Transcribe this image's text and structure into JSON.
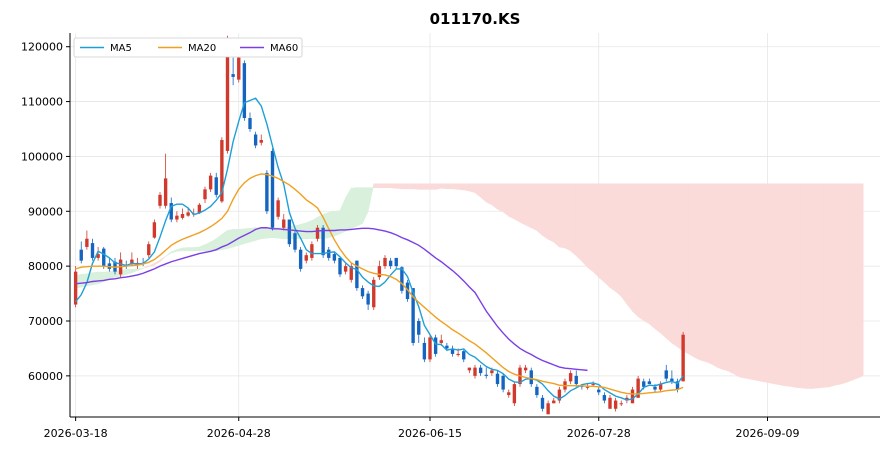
{
  "chart_data": {
    "type": "candlestick",
    "title": "011170.KS",
    "xlabel": "",
    "ylabel": "",
    "ylim": [
      52500,
      122500
    ],
    "y_ticks": [
      60000,
      70000,
      80000,
      90000,
      100000,
      110000,
      120000
    ],
    "y_tick_labels": [
      "60000",
      "70000",
      "80000",
      "90000",
      "100000",
      "110000",
      "120000"
    ],
    "x_ticks": [
      "2026-03-18",
      "2026-04-28",
      "2026-06-15",
      "2026-07-28",
      "2026-09-09"
    ],
    "x_tick_index": [
      0,
      29,
      63,
      93,
      123
    ],
    "x_range": [
      -1,
      143
    ],
    "grid": true,
    "legend_position": "top-left",
    "legend": [
      {
        "name": "MA5",
        "color": "#1f9fd8"
      },
      {
        "name": "MA20",
        "color": "#f0a020"
      },
      {
        "name": "MA60",
        "color": "#7b3fe4"
      }
    ],
    "colors": {
      "up": "#d0392b",
      "down": "#1565c0",
      "cloud_bull": "#d8f0dc",
      "cloud_bear": "#fbdada"
    },
    "candles_open": [
      73000,
      83000,
      83500,
      84200,
      81500,
      83200,
      80500,
      80800,
      78500,
      80300,
      80500,
      80200,
      80600,
      82000,
      85200,
      91000,
      91000,
      91500,
      88500,
      88800,
      89200,
      89600,
      89700,
      92200,
      94000,
      96200,
      91800,
      101000,
      115000,
      114000,
      117000,
      107000,
      104000,
      102500,
      97000,
      101000,
      89000,
      87000,
      88500,
      86000,
      83000,
      81000,
      81500,
      85000,
      87000,
      83000,
      82200,
      81500,
      79000,
      77500,
      81000,
      76000,
      75000,
      72500,
      78000,
      80000,
      81000,
      81500,
      79800,
      77000,
      76000,
      70000,
      66000,
      63000,
      67000,
      66000,
      65500,
      65000,
      63800,
      64500,
      61000,
      60000,
      61500,
      60200,
      60500,
      60400,
      60000,
      56500,
      55000,
      58500,
      61000,
      61000,
      58000,
      56000,
      53000,
      55000,
      55500,
      57500,
      59000,
      60000,
      58200,
      58000,
      58500,
      57500,
      56500,
      54000,
      54000,
      55000,
      55500,
      55000,
      56000,
      59000,
      59000,
      58000,
      57500,
      61000,
      59500,
      59000,
      59000
    ],
    "candles_close": [
      79000,
      81000,
      85000,
      81500,
      82200,
      80000,
      79500,
      79000,
      81200,
      80000,
      81200,
      80600,
      80500,
      84000,
      88000,
      93000,
      96000,
      88500,
      89200,
      89500,
      89800,
      89600,
      91200,
      94000,
      96500,
      93000,
      103000,
      119000,
      114500,
      118000,
      107000,
      105000,
      102000,
      103000,
      90000,
      87000,
      92000,
      88500,
      84000,
      83000,
      79500,
      82000,
      84000,
      87000,
      82000,
      81500,
      81000,
      78500,
      80000,
      80000,
      76000,
      74500,
      73000,
      77500,
      80000,
      81500,
      80000,
      80000,
      75500,
      74000,
      66000,
      67500,
      63000,
      67000,
      64000,
      66500,
      65000,
      64000,
      64000,
      63000,
      61500,
      61500,
      60500,
      60000,
      61000,
      58500,
      57500,
      57000,
      58500,
      61500,
      61500,
      58500,
      56500,
      54000,
      55000,
      55500,
      57500,
      59000,
      60500,
      58500,
      58000,
      58000,
      58500,
      57000,
      55500,
      56000,
      55500,
      55000,
      56000,
      57500,
      59500,
      58000,
      58500,
      57500,
      58500,
      59500,
      59000,
      57500,
      67500
    ],
    "candles_high": [
      80000,
      84500,
      86500,
      85000,
      83500,
      83500,
      81500,
      81500,
      82500,
      81000,
      82500,
      81500,
      81500,
      84500,
      88500,
      93500,
      100500,
      92500,
      90000,
      90500,
      90500,
      90500,
      91500,
      94500,
      97000,
      97000,
      103500,
      122000,
      118000,
      118500,
      117500,
      108000,
      104500,
      104000,
      97500,
      101500,
      92500,
      89500,
      88500,
      86500,
      83500,
      82500,
      84500,
      87500,
      87500,
      83500,
      82500,
      81500,
      80500,
      80500,
      81000,
      76500,
      75500,
      78000,
      81000,
      82000,
      81500,
      81500,
      80000,
      77500,
      76000,
      70500,
      67000,
      67500,
      67500,
      67500,
      66000,
      65500,
      65000,
      65000,
      61500,
      62000,
      62000,
      61500,
      61500,
      61000,
      60500,
      57500,
      59000,
      62000,
      62000,
      61500,
      58500,
      56500,
      55500,
      56000,
      58000,
      59500,
      61000,
      61000,
      58500,
      58500,
      59000,
      58000,
      57000,
      56500,
      56000,
      55500,
      56500,
      58000,
      60000,
      59500,
      59500,
      58500,
      59000,
      62000,
      61000,
      59500,
      68000
    ],
    "candles_low": [
      72500,
      80500,
      83000,
      81000,
      81000,
      79500,
      79000,
      78500,
      78000,
      79500,
      80000,
      79500,
      80000,
      81500,
      85000,
      90500,
      90500,
      88000,
      88000,
      88500,
      89000,
      89000,
      89500,
      91500,
      93500,
      92500,
      91500,
      100500,
      113000,
      113500,
      106500,
      104500,
      101500,
      102000,
      89500,
      86500,
      88500,
      86500,
      83500,
      82500,
      79000,
      80500,
      81000,
      84500,
      81500,
      81000,
      80500,
      78000,
      78500,
      77000,
      75500,
      74000,
      72000,
      72000,
      77500,
      79500,
      79500,
      79500,
      75000,
      73500,
      65500,
      66000,
      62500,
      62500,
      63500,
      65500,
      64500,
      63500,
      63500,
      62500,
      60500,
      59500,
      60000,
      59500,
      60000,
      58000,
      57000,
      56000,
      54500,
      58000,
      60500,
      58000,
      56000,
      53500,
      53000,
      55000,
      55000,
      57000,
      58500,
      58000,
      57500,
      57500,
      58000,
      56500,
      55000,
      54000,
      53500,
      54500,
      55000,
      55000,
      56000,
      57500,
      58500,
      57000,
      57000,
      59000,
      58500,
      57000,
      59000
    ],
    "ma5": [
      73500,
      74800,
      77000,
      80500,
      82700,
      82200,
      81500,
      80600,
      80400,
      80100,
      80500,
      80400,
      80500,
      81300,
      82600,
      85300,
      88300,
      90900,
      91300,
      91300,
      90600,
      89400,
      89700,
      90200,
      90900,
      92000,
      93400,
      97700,
      102700,
      106400,
      109800,
      110200,
      110600,
      109200,
      105900,
      101900,
      98000,
      94900,
      89800,
      86900,
      85100,
      83000,
      82300,
      82300,
      82300,
      82500,
      82600,
      81700,
      80600,
      79700,
      79400,
      78000,
      77100,
      76400,
      76300,
      77100,
      78400,
      79500,
      79500,
      78100,
      75200,
      72600,
      69200,
      67500,
      65800,
      65700,
      64700,
      64900,
      64700,
      64900,
      63900,
      63400,
      62500,
      61700,
      61200,
      61000,
      60400,
      59400,
      58900,
      58800,
      59400,
      59500,
      59200,
      58500,
      57300,
      56300,
      55800,
      56400,
      57300,
      57800,
      58400,
      58600,
      58700,
      58400,
      57500,
      56900,
      56300,
      56000,
      55600,
      55800,
      56700,
      57900,
      58300,
      58200,
      58500,
      58800,
      59000,
      58600,
      60000
    ],
    "ma20": [
      79500,
      79800,
      79900,
      80000,
      80000,
      80000,
      79900,
      79800,
      79900,
      80000,
      80100,
      80200,
      80400,
      80700,
      81200,
      82000,
      82900,
      83800,
      84400,
      84900,
      85300,
      85700,
      86100,
      86600,
      87200,
      87900,
      88700,
      90000,
      92200,
      94000,
      95200,
      96000,
      96500,
      96800,
      96700,
      96400,
      96000,
      95400,
      94800,
      94000,
      93100,
      92100,
      91400,
      90600,
      88900,
      86800,
      84800,
      83100,
      81700,
      80600,
      80000,
      79500,
      79000,
      78700,
      78500,
      78400,
      78100,
      77600,
      76800,
      75700,
      74400,
      73400,
      72500,
      71600,
      70700,
      69900,
      69200,
      68400,
      67800,
      67100,
      66400,
      65800,
      65000,
      64200,
      63300,
      62400,
      61500,
      60800,
      60300,
      60000,
      59700,
      59500,
      59300,
      59000,
      58800,
      58600,
      58300,
      58200,
      58200,
      58200,
      58200,
      58100,
      58100,
      58000,
      57900,
      57600,
      57300,
      57000,
      56800,
      56700,
      56700,
      56800,
      56900,
      57000,
      57100,
      57300,
      57400,
      57500,
      57900
    ],
    "ma60": [
      76800,
      76900,
      77000,
      77200,
      77300,
      77400,
      77600,
      77700,
      77900,
      78000,
      78200,
      78400,
      78700,
      79100,
      79500,
      80000,
      80400,
      80800,
      81100,
      81400,
      81700,
      82000,
      82300,
      82500,
      82700,
      83000,
      83500,
      83900,
      84500,
      85100,
      85600,
      86100,
      86700,
      87000,
      87000,
      86800,
      86800,
      86700,
      86600,
      86500,
      86400,
      86300,
      86300,
      86400,
      86500,
      86500,
      86500,
      86600,
      86600,
      86700,
      86800,
      86900,
      86900,
      86800,
      86600,
      86400,
      86100,
      85700,
      85200,
      84800,
      84300,
      83800,
      83100,
      82300,
      81500,
      80800,
      80000,
      79200,
      78300,
      77300,
      76200,
      75200,
      73500,
      71800,
      70400,
      69000,
      67800,
      66700,
      65800,
      65000,
      64400,
      63900,
      63300,
      62800,
      62400,
      62000,
      61600,
      61400,
      61300,
      61200,
      61100,
      61000
    ],
    "cloud_span_a": [
      78300,
      78500,
      78600,
      78800,
      78900,
      78900,
      79000,
      79100,
      79200,
      79400,
      79400,
      79500,
      79600,
      79900,
      80200,
      80800,
      81800,
      82600,
      83000,
      83300,
      83400,
      83400,
      83500,
      83900,
      84400,
      85000,
      85800,
      86500,
      86700,
      86700,
      86800,
      86900,
      87000,
      87000,
      87000,
      87000,
      87000,
      87000,
      87200,
      87400,
      87600,
      87900,
      88300,
      88900,
      89400,
      89800,
      90000,
      90100,
      92500,
      94200,
      94300,
      94300,
      94300,
      94300,
      94300,
      94300,
      94300,
      94200,
      94100,
      94100,
      94100,
      94000,
      94000,
      94000,
      94000,
      94200,
      94100,
      94100,
      94000,
      93900,
      93700,
      93400,
      92600,
      91700,
      91200,
      90400,
      89900,
      89100,
      88600,
      88000,
      87500,
      87000,
      86500,
      85600,
      84900,
      84400,
      83500,
      83300,
      82800,
      81900,
      80900,
      79800,
      79000,
      78000,
      77100,
      76100,
      75400,
      74500,
      73100,
      71800,
      70800,
      70100,
      69500,
      68600,
      67800,
      66900,
      66000,
      65300,
      64500,
      64000,
      63400,
      62900,
      62600,
      62200,
      61600,
      61200,
      60900,
      60400,
      59800,
      59600,
      59400,
      59200,
      59000,
      58800,
      58600,
      58400,
      58200,
      58100,
      57900,
      57800,
      57700,
      57700,
      57800,
      57900,
      58000,
      58300,
      58500,
      58800,
      59200,
      59600,
      60000
    ],
    "cloud_span_b": [
      76000,
      76200,
      76400,
      76600,
      76800,
      77200,
      77600,
      78000,
      78200,
      78500,
      78800,
      79200,
      79600,
      80000,
      80500,
      81100,
      81800,
      82400,
      82700,
      82800,
      82800,
      82800,
      82800,
      82800,
      82800,
      82800,
      83000,
      83200,
      83500,
      83800,
      84100,
      84400,
      84700,
      85000,
      85100,
      85200,
      85100,
      85000,
      85000,
      85000,
      85000,
      85000,
      85000,
      85000,
      85000,
      85200,
      85500,
      85900,
      86400,
      86900,
      87300,
      87800,
      90000,
      95000,
      95000,
      95000,
      95000,
      95000,
      95000,
      95000,
      95000,
      95000,
      95000,
      95000,
      95000,
      95000,
      95000,
      95000,
      95000,
      95000,
      95000,
      95000,
      95000,
      95000,
      95000,
      95000,
      95000,
      95000,
      95000,
      95000,
      95000,
      95000,
      95000,
      95000,
      95000,
      95000,
      95000,
      95000,
      95000,
      95000,
      95000,
      95000,
      95000,
      95000,
      95000,
      95000,
      95000,
      95000,
      95000,
      95000,
      95000,
      95000,
      95000,
      95000,
      95000,
      95000,
      95000,
      95000,
      95000,
      95000,
      95000,
      95000,
      95000,
      95000,
      95000,
      95000,
      95000,
      95000,
      95000,
      95000,
      95000,
      95000,
      95000,
      95000,
      95000,
      95000,
      95000,
      95000,
      95000,
      95000,
      95000,
      95000,
      95000,
      95000,
      95000,
      95000,
      95000,
      95000,
      95000,
      95000,
      95000
    ]
  }
}
